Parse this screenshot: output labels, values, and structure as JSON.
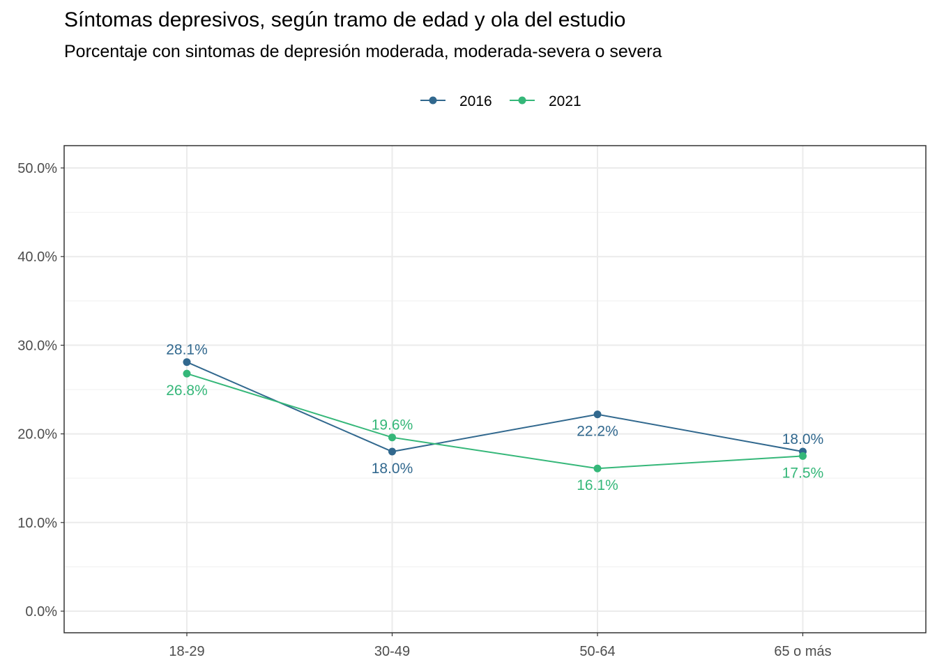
{
  "chart_data": {
    "type": "line",
    "title": "Síntomas depresivos, según tramo de edad y ola del estudio",
    "subtitle": "Porcentaje con sintomas de depresión moderada, moderada-severa o severa",
    "xlabel": "",
    "ylabel": "",
    "categories": [
      "18-29",
      "30-49",
      "50-64",
      "65 o más"
    ],
    "ylim": [
      0,
      50
    ],
    "y_ticks": [
      0,
      10,
      20,
      30,
      40,
      50
    ],
    "y_tick_labels": [
      "0.0%",
      "10.0%",
      "20.0%",
      "30.0%",
      "40.0%",
      "50.0%"
    ],
    "grid": true,
    "legend_position": "top",
    "series": [
      {
        "name": "2016",
        "color": "#31688e",
        "values": [
          28.1,
          18.0,
          22.2,
          18.0
        ],
        "labels": [
          "28.1%",
          "18.0%",
          "22.2%",
          "18.0%"
        ],
        "label_side": [
          "above",
          "below",
          "below",
          "above"
        ]
      },
      {
        "name": "2021",
        "color": "#35b779",
        "values": [
          26.8,
          19.6,
          16.1,
          17.5
        ],
        "labels": [
          "26.8%",
          "19.6%",
          "16.1%",
          "17.5%"
        ],
        "label_side": [
          "below",
          "above",
          "below",
          "below"
        ]
      }
    ]
  }
}
